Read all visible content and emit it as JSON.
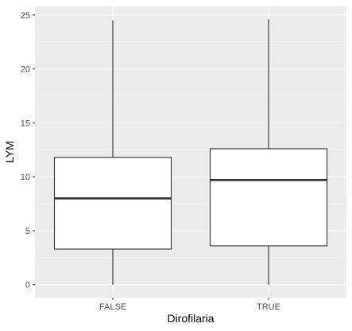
{
  "chart_data": {
    "type": "box",
    "xlabel": "Dirofilaria",
    "ylabel": "LYM",
    "categories": [
      "FALSE",
      "TRUE"
    ],
    "ylim": [
      -1.2,
      25.8
    ],
    "yticks": [
      0,
      5,
      10,
      15,
      20,
      25
    ],
    "ytick_labels": [
      "0",
      "5",
      "10",
      "15",
      "20",
      "25"
    ],
    "boxes": [
      {
        "category": "FALSE",
        "min": 0,
        "q1": 3.3,
        "median": 8.0,
        "q3": 11.8,
        "max": 24.5
      },
      {
        "category": "TRUE",
        "min": 0,
        "q1": 3.6,
        "median": 9.7,
        "q3": 12.6,
        "max": 24.6
      }
    ],
    "grid": true,
    "legend": "none",
    "colors": {
      "panel_bg": "#ebebeb",
      "grid_major": "#ffffff",
      "grid_minor": "#f5f5f5",
      "box_fill": "#ffffff",
      "box_line": "#333333"
    }
  }
}
